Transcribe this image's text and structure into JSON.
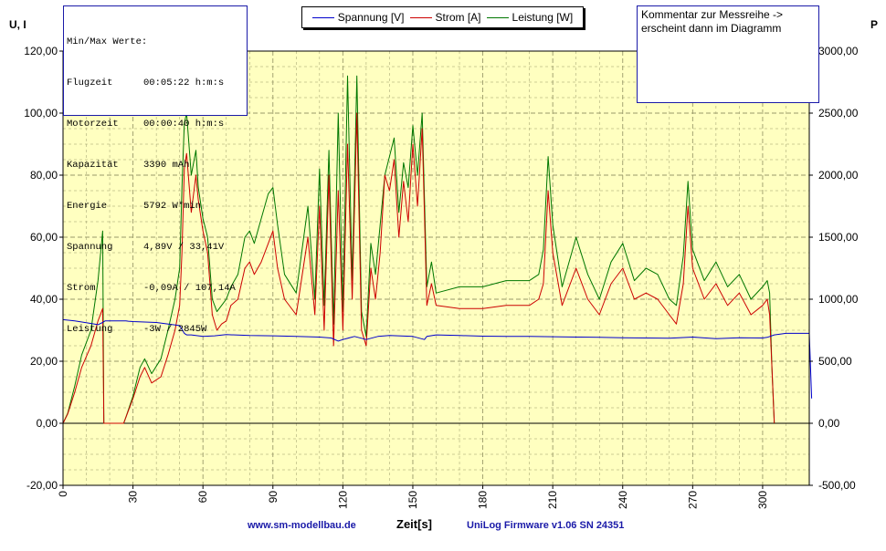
{
  "chart_data": {
    "type": "line",
    "xlabel": "Zeit[s]",
    "ylabel_left": "U, I",
    "ylabel_right": "P",
    "xlim": [
      0,
      320
    ],
    "ylim_left": [
      -20,
      120
    ],
    "ylim_right": [
      -500,
      3000
    ],
    "x_ticks": [
      0,
      30,
      60,
      90,
      120,
      150,
      180,
      210,
      240,
      270,
      300
    ],
    "y_ticks_left": [
      "120,00",
      "100,00",
      "80,00",
      "60,00",
      "40,00",
      "20,00",
      "0,00",
      "-20,00"
    ],
    "y_ticks_right": [
      "3000,00",
      "2500,00",
      "2000,00",
      "1500,00",
      "1000,00",
      "500,00",
      "0,00",
      "-500,00"
    ],
    "grid": true,
    "legend_position": "top-center",
    "series": [
      {
        "name": "Spannung [V]",
        "axis": "left",
        "color": "#0000cc",
        "x": [
          0,
          5,
          10,
          15,
          17,
          18,
          25,
          27,
          28,
          30,
          40,
          50,
          52,
          53,
          55,
          60,
          65,
          70,
          80,
          90,
          100,
          110,
          115,
          118,
          120,
          125,
          130,
          135,
          140,
          150,
          155,
          156,
          160,
          170,
          180,
          190,
          200,
          210,
          220,
          230,
          240,
          250,
          260,
          270,
          280,
          290,
          300,
          302,
          305,
          310,
          320,
          321
        ],
        "values": [
          33.4,
          33.0,
          32.4,
          31.8,
          32.5,
          33.0,
          33.0,
          33.0,
          32.9,
          32.8,
          32.5,
          31.5,
          29.0,
          28.5,
          28.5,
          28.0,
          28.2,
          28.6,
          28.3,
          28.2,
          28.0,
          27.8,
          27.5,
          26.5,
          27.0,
          28.0,
          27.0,
          28.0,
          28.3,
          28.0,
          27.0,
          28.0,
          28.5,
          28.3,
          28.1,
          28.0,
          28.0,
          27.9,
          27.8,
          27.7,
          27.6,
          27.5,
          27.4,
          27.8,
          27.3,
          27.6,
          27.5,
          27.7,
          28.5,
          29.0,
          29.0,
          8.0
        ]
      },
      {
        "name": "Strom [A]",
        "axis": "left",
        "color": "#cc0000",
        "x": [
          0,
          2,
          5,
          8,
          12,
          15,
          17,
          17.5,
          18,
          26,
          27,
          30,
          33,
          35,
          38,
          42,
          45,
          48,
          50,
          51,
          52,
          53,
          55,
          57,
          58,
          60,
          62,
          64,
          66,
          68,
          70,
          72,
          75,
          78,
          80,
          82,
          85,
          88,
          90,
          92,
          95,
          100,
          105,
          108,
          110,
          112,
          114,
          116,
          118,
          120,
          122,
          124,
          126,
          128,
          130,
          132,
          134,
          136,
          138,
          140,
          142,
          144,
          146,
          148,
          150,
          152,
          154,
          156,
          158,
          160,
          170,
          180,
          190,
          200,
          204,
          206,
          208,
          210,
          214,
          220,
          225,
          230,
          235,
          240,
          245,
          250,
          255,
          260,
          263,
          266,
          268,
          270,
          275,
          280,
          285,
          290,
          295,
          300,
          302,
          303,
          304,
          305
        ],
        "values": [
          0,
          3,
          10,
          18,
          25,
          33,
          37,
          0,
          0,
          0,
          2,
          8,
          15,
          18,
          13,
          15,
          22,
          30,
          38,
          55,
          82,
          87,
          68,
          80,
          72,
          62,
          55,
          35,
          30,
          32,
          33,
          38,
          40,
          50,
          52,
          48,
          52,
          58,
          62,
          50,
          40,
          35,
          60,
          35,
          70,
          30,
          80,
          25,
          75,
          30,
          90,
          40,
          100,
          30,
          25,
          50,
          40,
          55,
          80,
          75,
          85,
          60,
          78,
          65,
          90,
          70,
          95,
          38,
          45,
          38,
          37,
          37,
          38,
          38,
          40,
          45,
          75,
          55,
          38,
          50,
          40,
          35,
          45,
          50,
          40,
          42,
          40,
          35,
          32,
          45,
          70,
          50,
          40,
          45,
          38,
          42,
          35,
          38,
          40,
          35,
          18,
          0
        ]
      },
      {
        "name": "Leistung [W]",
        "axis": "right",
        "color": "#007700",
        "x": [
          0,
          2,
          5,
          8,
          12,
          15,
          17,
          17.5,
          18,
          26,
          27,
          30,
          33,
          35,
          38,
          42,
          45,
          48,
          50,
          51,
          52,
          53,
          55,
          57,
          58,
          60,
          62,
          64,
          66,
          68,
          70,
          72,
          75,
          78,
          80,
          82,
          85,
          88,
          90,
          92,
          95,
          100,
          105,
          108,
          110,
          112,
          114,
          116,
          118,
          120,
          122,
          124,
          126,
          128,
          130,
          132,
          134,
          136,
          138,
          140,
          142,
          144,
          146,
          148,
          150,
          152,
          154,
          156,
          158,
          160,
          170,
          180,
          190,
          200,
          204,
          206,
          208,
          210,
          214,
          220,
          225,
          230,
          235,
          240,
          245,
          250,
          255,
          260,
          263,
          266,
          268,
          270,
          275,
          280,
          285,
          290,
          295,
          300,
          302,
          303,
          304,
          305
        ],
        "values": [
          0,
          80,
          300,
          550,
          750,
          1150,
          1550,
          0,
          0,
          0,
          50,
          220,
          450,
          520,
          400,
          520,
          750,
          1000,
          1250,
          1900,
          2420,
          2500,
          2000,
          2200,
          1900,
          1650,
          1500,
          1000,
          900,
          950,
          1000,
          1100,
          1200,
          1500,
          1550,
          1450,
          1650,
          1850,
          1900,
          1600,
          1200,
          1050,
          1750,
          1000,
          2050,
          950,
          2200,
          800,
          2500,
          900,
          2800,
          1150,
          2800,
          900,
          700,
          1450,
          1200,
          1600,
          2000,
          2150,
          2300,
          1700,
          2100,
          1900,
          2400,
          2000,
          2500,
          1100,
          1300,
          1050,
          1100,
          1100,
          1150,
          1150,
          1200,
          1400,
          2150,
          1600,
          1100,
          1500,
          1200,
          1000,
          1300,
          1450,
          1150,
          1250,
          1200,
          1000,
          950,
          1350,
          1950,
          1400,
          1150,
          1300,
          1100,
          1200,
          1000,
          1100,
          1150,
          1050,
          450,
          0
        ]
      }
    ]
  },
  "info_box": {
    "title": "Min/Max Werte:",
    "rows": [
      {
        "key": "Flugzeit",
        "value": "00:05:22 h:m:s"
      },
      {
        "key": "Motorzeit",
        "value": "00:00:40 h:m:s"
      },
      {
        "key": "Kapazität",
        "value": "3390 mAh"
      },
      {
        "key": "Energie",
        "value": "5792 W*min"
      },
      {
        "key": "Spannung",
        "value": "4,89V / 33,41V"
      },
      {
        "key": "Strom",
        "value": "-0,09A / 107,14A"
      },
      {
        "key": "Leistung",
        "value": "-3W / 2845W"
      }
    ]
  },
  "comment": {
    "line1": "Kommentar zur Messreihe ->",
    "line2": "erscheint dann im Diagramm"
  },
  "footer": {
    "website": "www.sm-modellbau.de",
    "firmware": "UniLog Firmware v1.06  SN 24351"
  },
  "colors": {
    "plot_background": "#ffffc0",
    "grid": "#9a9a6a",
    "voltage": "#0000cc",
    "current": "#cc0000",
    "power": "#007700"
  }
}
